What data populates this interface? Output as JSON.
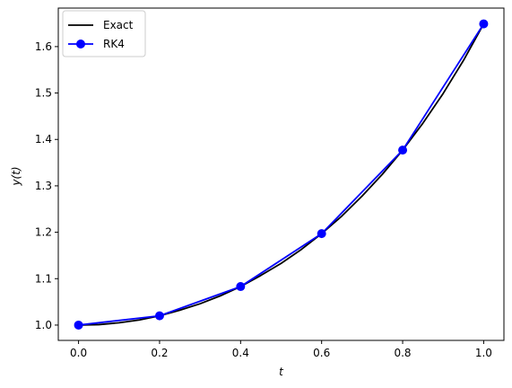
{
  "chart_data": {
    "type": "line",
    "title": "",
    "xlabel": "t",
    "ylabel": "y(t)",
    "xlim": [
      -0.05,
      1.05
    ],
    "ylim": [
      0.967,
      1.683
    ],
    "xticks": [
      0.0,
      0.2,
      0.4,
      0.6,
      0.8,
      1.0
    ],
    "xtick_labels": [
      "0.0",
      "0.2",
      "0.4",
      "0.6",
      "0.8",
      "1.0"
    ],
    "yticks": [
      1.0,
      1.1,
      1.2,
      1.3,
      1.4,
      1.5,
      1.6
    ],
    "ytick_labels": [
      "1.0",
      "1.1",
      "1.2",
      "1.3",
      "1.4",
      "1.5",
      "1.6"
    ],
    "grid": false,
    "legend_position": "top-left",
    "series": [
      {
        "name": "Exact",
        "color": "#000000",
        "style": "solid line",
        "marker": "none",
        "x": [
          0.0,
          0.05,
          0.1,
          0.15,
          0.2,
          0.25,
          0.3,
          0.35,
          0.4,
          0.45,
          0.5,
          0.55,
          0.6,
          0.65,
          0.7,
          0.75,
          0.8,
          0.85,
          0.9,
          0.95,
          1.0
        ],
        "y": [
          1.0,
          1.001,
          1.005,
          1.011,
          1.02,
          1.032,
          1.046,
          1.063,
          1.083,
          1.107,
          1.133,
          1.163,
          1.197,
          1.235,
          1.278,
          1.325,
          1.377,
          1.435,
          1.499,
          1.57,
          1.649
        ]
      },
      {
        "name": "RK4",
        "color": "#0000ff",
        "style": "solid line",
        "marker": "circle",
        "x": [
          0.0,
          0.2,
          0.4,
          0.6,
          0.8,
          1.0
        ],
        "y": [
          1.0,
          1.02,
          1.083,
          1.197,
          1.377,
          1.649
        ]
      }
    ]
  }
}
